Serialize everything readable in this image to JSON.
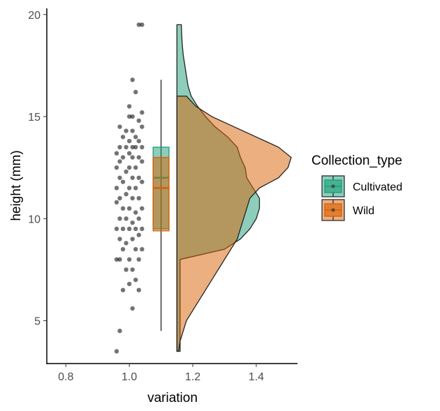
{
  "chart_data": {
    "type": "raincloud",
    "title": "",
    "xlabel": "variation",
    "ylabel": "height (mm)",
    "xlim": [
      0.74,
      1.53
    ],
    "ylim": [
      2.9,
      20.3
    ],
    "x_ticks": [
      0.8,
      1.0,
      1.2,
      1.4
    ],
    "x_tick_labels": [
      "0.8",
      "1.0",
      "1.2",
      "1.4"
    ],
    "y_ticks": [
      5,
      10,
      15,
      20
    ],
    "y_tick_labels": [
      "5",
      "10",
      "15",
      "20"
    ],
    "grid": false,
    "legend": {
      "title": "Collection_type",
      "position": "right",
      "entries": [
        "Cultivated",
        "Wild"
      ]
    },
    "colors": {
      "Cultivated": "#1b9e77",
      "Wild": "#d95f02",
      "points": "#000000",
      "axis": "#000000"
    },
    "series": [
      {
        "name": "Cultivated",
        "box": {
          "x": 1.1,
          "q1": 9.5,
          "median": 12.0,
          "q3": 13.5,
          "whisker_low": 4.5,
          "whisker_high": 16.8
        },
        "density": {
          "x0": 1.15,
          "points": [
            [
              3.5,
              0.01
            ],
            [
              4.0,
              0.01
            ],
            [
              5.0,
              0.01
            ],
            [
              6.0,
              0.01
            ],
            [
              7.0,
              0.01
            ],
            [
              8.0,
              0.01
            ],
            [
              8.5,
              0.15
            ],
            [
              9.0,
              0.2
            ],
            [
              9.5,
              0.23
            ],
            [
              10.0,
              0.25
            ],
            [
              10.5,
              0.26
            ],
            [
              11.0,
              0.26
            ],
            [
              11.5,
              0.24
            ],
            [
              12.0,
              0.22
            ],
            [
              12.5,
              0.215
            ],
            [
              13.0,
              0.2
            ],
            [
              13.5,
              0.19
            ],
            [
              14.0,
              0.16
            ],
            [
              14.5,
              0.12
            ],
            [
              15.0,
              0.09
            ],
            [
              15.5,
              0.065
            ],
            [
              16.0,
              0.045
            ],
            [
              16.5,
              0.035
            ],
            [
              17.0,
              0.03
            ],
            [
              17.5,
              0.025
            ],
            [
              18.0,
              0.02
            ],
            [
              18.5,
              0.017
            ],
            [
              19.0,
              0.015
            ],
            [
              19.5,
              0.014
            ]
          ]
        }
      },
      {
        "name": "Wild",
        "box": {
          "x": 1.1,
          "q1": 9.4,
          "median": 11.5,
          "q3": 13.0,
          "whisker_low": 4.5,
          "whisker_high": 16.8
        },
        "density": {
          "x0": 1.15,
          "points": [
            [
              3.5,
              0.005
            ],
            [
              4.0,
              0.01
            ],
            [
              4.5,
              0.02
            ],
            [
              5.0,
              0.03
            ],
            [
              5.5,
              0.05
            ],
            [
              6.0,
              0.07
            ],
            [
              6.5,
              0.09
            ],
            [
              7.0,
              0.11
            ],
            [
              7.5,
              0.13
            ],
            [
              8.0,
              0.15
            ],
            [
              8.5,
              0.17
            ],
            [
              9.0,
              0.19
            ],
            [
              9.5,
              0.2
            ],
            [
              10.0,
              0.21
            ],
            [
              10.5,
              0.22
            ],
            [
              11.0,
              0.23
            ],
            [
              11.5,
              0.26
            ],
            [
              12.0,
              0.32
            ],
            [
              12.5,
              0.35
            ],
            [
              13.0,
              0.36
            ],
            [
              13.5,
              0.32
            ],
            [
              14.0,
              0.25
            ],
            [
              14.5,
              0.18
            ],
            [
              15.0,
              0.11
            ],
            [
              15.5,
              0.06
            ],
            [
              16.0,
              0.03
            ],
            [
              16.0,
              0.0
            ]
          ]
        }
      }
    ],
    "points": [
      [
        1.04,
        19.5
      ],
      [
        1.03,
        19.5
      ],
      [
        1.01,
        16.8
      ],
      [
        1.02,
        16.2
      ],
      [
        1.0,
        15.5
      ],
      [
        1.04,
        15.2
      ],
      [
        1.01,
        15.0
      ],
      [
        1.0,
        15.0
      ],
      [
        1.03,
        14.8
      ],
      [
        0.97,
        14.5
      ],
      [
        1.04,
        14.5
      ],
      [
        0.99,
        14.3
      ],
      [
        1.01,
        14.3
      ],
      [
        1.02,
        14.0
      ],
      [
        0.98,
        14.0
      ],
      [
        1.0,
        13.8
      ],
      [
        1.03,
        13.8
      ],
      [
        0.97,
        13.5
      ],
      [
        1.01,
        13.5
      ],
      [
        1.04,
        13.5
      ],
      [
        0.99,
        13.5
      ],
      [
        1.02,
        13.5
      ],
      [
        0.96,
        13.2
      ],
      [
        1.0,
        13.2
      ],
      [
        1.03,
        13.0
      ],
      [
        0.98,
        13.0
      ],
      [
        1.01,
        13.0
      ],
      [
        0.97,
        12.8
      ],
      [
        1.04,
        12.8
      ],
      [
        1.0,
        12.5
      ],
      [
        0.96,
        12.5
      ],
      [
        1.02,
        12.5
      ],
      [
        0.99,
        12.3
      ],
      [
        1.03,
        12.0
      ],
      [
        0.97,
        12.0
      ],
      [
        1.01,
        12.0
      ],
      [
        0.98,
        11.8
      ],
      [
        1.04,
        11.8
      ],
      [
        1.0,
        11.5
      ],
      [
        0.96,
        11.5
      ],
      [
        1.02,
        11.5
      ],
      [
        0.99,
        11.2
      ],
      [
        1.03,
        11.0
      ],
      [
        0.97,
        11.0
      ],
      [
        1.01,
        11.0
      ],
      [
        0.96,
        10.8
      ],
      [
        1.0,
        10.5
      ],
      [
        1.04,
        10.5
      ],
      [
        0.98,
        10.5
      ],
      [
        1.02,
        10.3
      ],
      [
        0.99,
        10.0
      ],
      [
        1.03,
        10.0
      ],
      [
        0.97,
        10.0
      ],
      [
        1.01,
        9.8
      ],
      [
        1.04,
        9.5
      ],
      [
        0.96,
        9.5
      ],
      [
        1.0,
        9.5
      ],
      [
        0.98,
        9.5
      ],
      [
        1.02,
        9.5
      ],
      [
        1.03,
        9.2
      ],
      [
        0.97,
        9.0
      ],
      [
        1.01,
        9.0
      ],
      [
        0.99,
        8.8
      ],
      [
        1.04,
        8.5
      ],
      [
        1.02,
        8.5
      ],
      [
        0.98,
        8.5
      ],
      [
        1.0,
        8.0
      ],
      [
        0.96,
        8.0
      ],
      [
        1.03,
        8.0
      ],
      [
        0.97,
        8.0
      ],
      [
        1.01,
        7.5
      ],
      [
        0.99,
        7.5
      ],
      [
        1.02,
        7.0
      ],
      [
        1.0,
        6.8
      ],
      [
        0.98,
        6.5
      ],
      [
        1.03,
        6.5
      ],
      [
        1.01,
        5.6
      ],
      [
        0.97,
        4.5
      ],
      [
        0.96,
        3.5
      ]
    ]
  }
}
